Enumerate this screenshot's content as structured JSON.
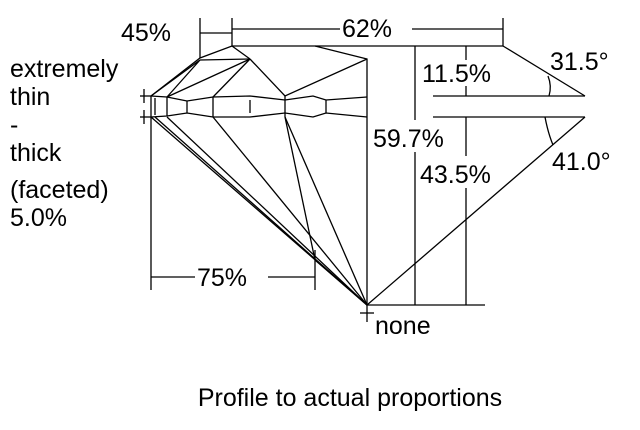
{
  "labels": {
    "crown_angle_table_side": "45%",
    "table": "62%",
    "girdle": [
      "extremely",
      "thin",
      "-",
      "thick",
      "(faceted)",
      "5.0%"
    ],
    "crown_height": "11.5%",
    "crown_angle": "31.5°",
    "total_depth": "59.7%",
    "pavilion_depth": "43.5%",
    "pavilion_angle": "41.0°",
    "lower_half": "75%",
    "culet": "none"
  },
  "caption": "Profile to actual proportions"
}
